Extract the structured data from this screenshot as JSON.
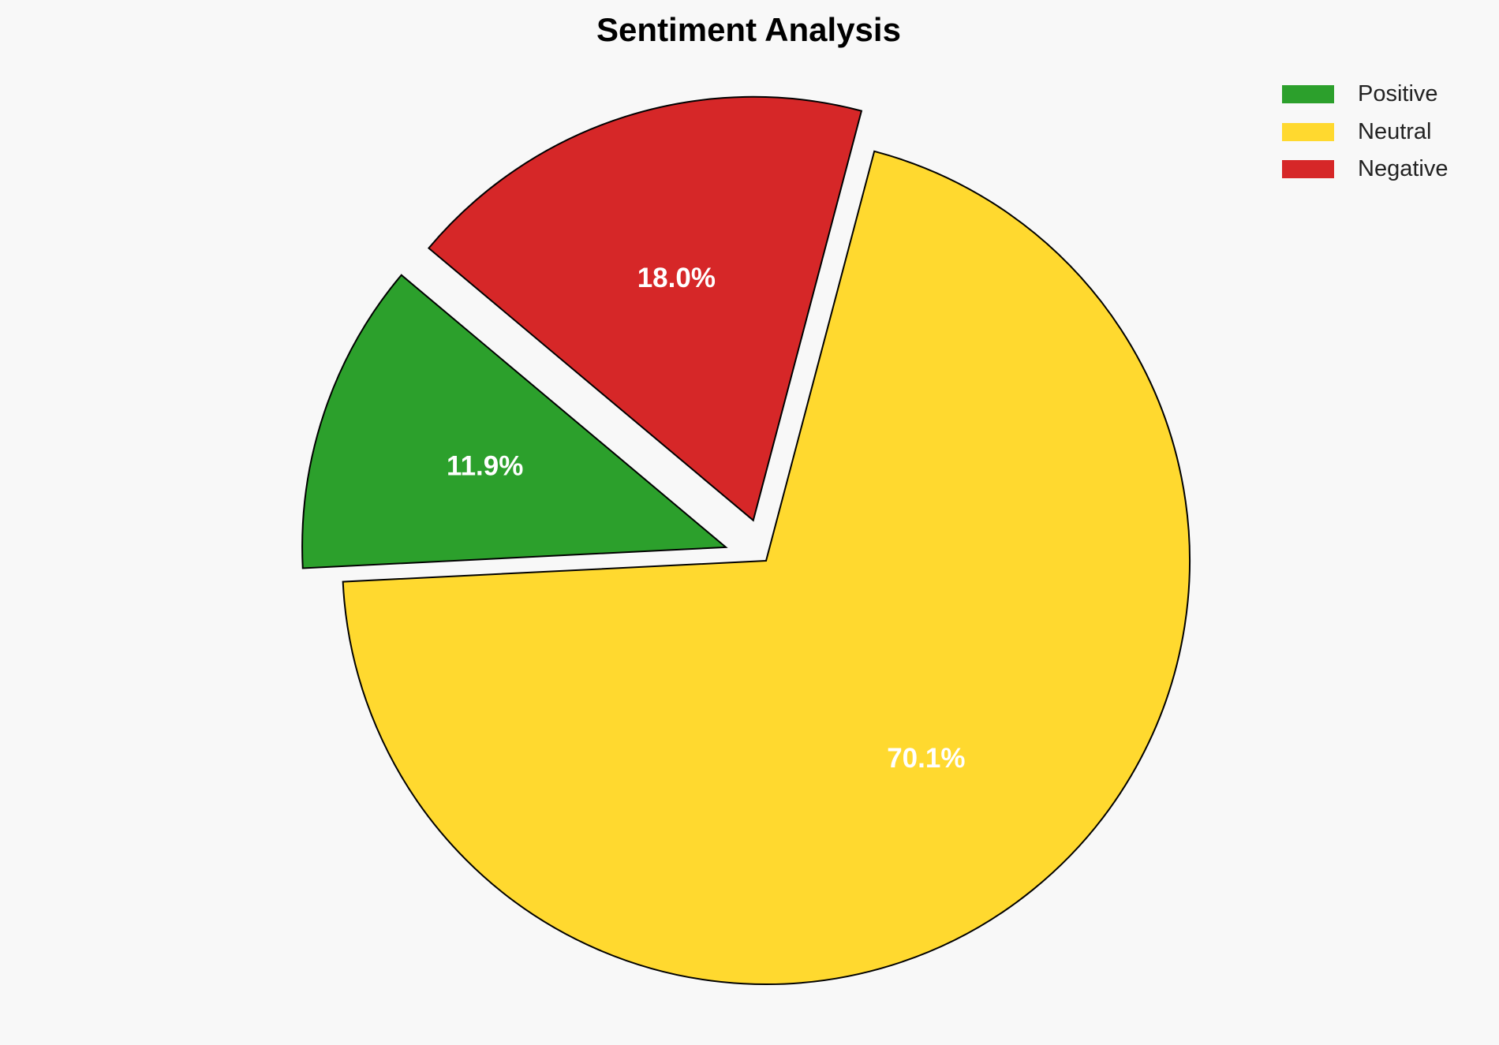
{
  "chart_data": {
    "type": "pie",
    "title": "Sentiment Analysis",
    "labels": [
      "Positive",
      "Neutral",
      "Negative"
    ],
    "values": [
      11.9,
      70.1,
      18.0
    ],
    "value_labels": [
      "11.9%",
      "70.1%",
      "18.0%"
    ],
    "colors": [
      "#2ca02c",
      "#ffd92f",
      "#d62728"
    ],
    "explode": [
      0.1,
      0,
      0.1
    ],
    "start_angle": 140,
    "direction": "counterclockwise",
    "legend_placement": "top-right",
    "edge_color": "#000000"
  }
}
